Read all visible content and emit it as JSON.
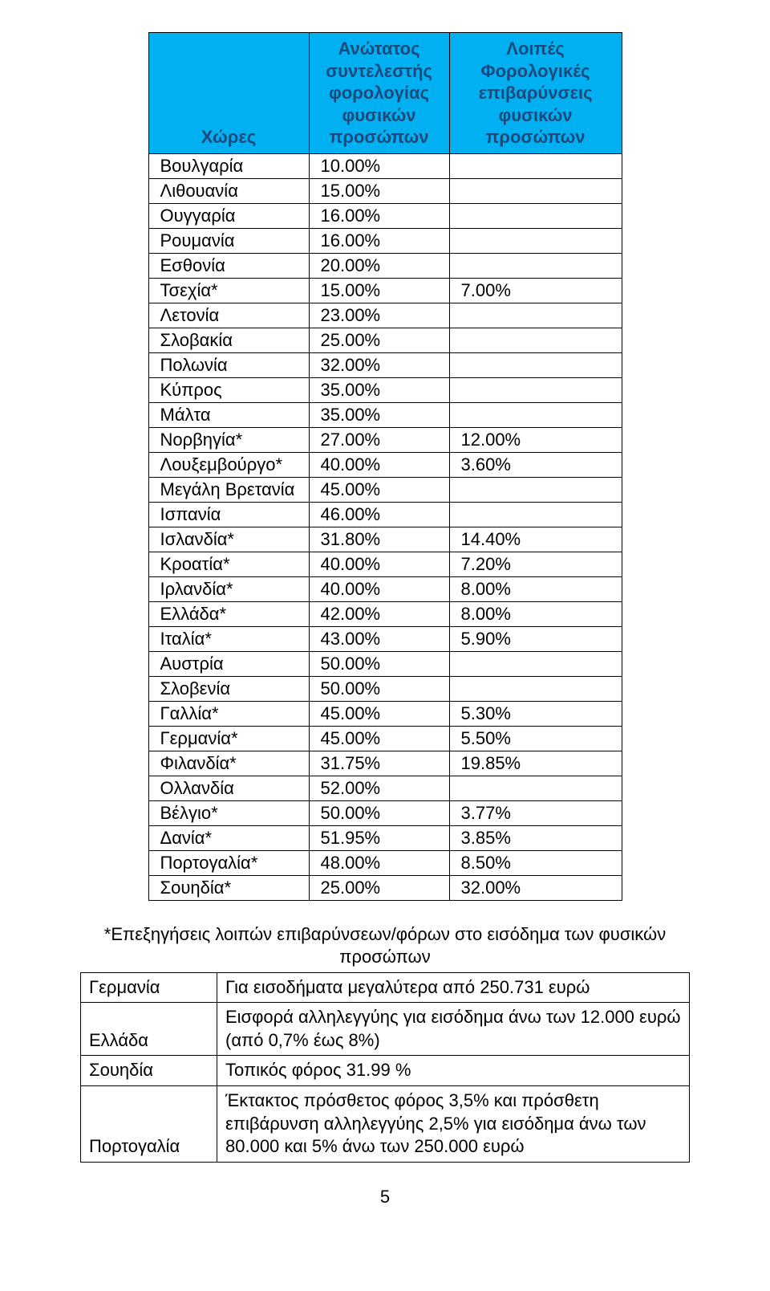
{
  "table": {
    "header": {
      "countries": "Χώρες",
      "top_rate": "Ανώτατος συντελεστής φορολογίας φυσικών προσώπων",
      "other_burdens": "Λοιπές Φορολογικές επιβαρύνσεις φυσικών προσώπων"
    },
    "colors": {
      "header_bg": "#00b0f0",
      "header_text": "#1f497d",
      "border": "#000000",
      "page_bg": "#ffffff",
      "body_text": "#000000"
    },
    "rows": [
      {
        "country": "Βουλγαρία",
        "rate": "10.00%",
        "other": ""
      },
      {
        "country": "Λιθουανία",
        "rate": "15.00%",
        "other": ""
      },
      {
        "country": "Ουγγαρία",
        "rate": "16.00%",
        "other": ""
      },
      {
        "country": "Ρουμανία",
        "rate": "16.00%",
        "other": ""
      },
      {
        "country": "Εσθονία",
        "rate": "20.00%",
        "other": ""
      },
      {
        "country": "Τσεχία*",
        "rate": "15.00%",
        "other": "7.00%"
      },
      {
        "country": "Λετονία",
        "rate": "23.00%",
        "other": ""
      },
      {
        "country": "Σλοβακία",
        "rate": "25.00%",
        "other": ""
      },
      {
        "country": "Πολωνία",
        "rate": "32.00%",
        "other": ""
      },
      {
        "country": "Κύπρος",
        "rate": "35.00%",
        "other": ""
      },
      {
        "country": "Μάλτα",
        "rate": "35.00%",
        "other": ""
      },
      {
        "country": "Νορβηγία*",
        "rate": "27.00%",
        "other": "12.00%"
      },
      {
        "country": "Λουξεμβούργο*",
        "rate": "40.00%",
        "other": "3.60%"
      },
      {
        "country": "Μεγάλη Βρετανία",
        "rate": "45.00%",
        "other": ""
      },
      {
        "country": "Ισπανία",
        "rate": "46.00%",
        "other": ""
      },
      {
        "country": "Ισλανδία*",
        "rate": "31.80%",
        "other": "14.40%"
      },
      {
        "country": "Κροατία*",
        "rate": "40.00%",
        "other": "7.20%"
      },
      {
        "country": "Ιρλανδία*",
        "rate": "40.00%",
        "other": "8.00%"
      },
      {
        "country": "Ελλάδα*",
        "rate": "42.00%",
        "other": "8.00%"
      },
      {
        "country": "Ιταλία*",
        "rate": "43.00%",
        "other": "5.90%"
      },
      {
        "country": "Αυστρία",
        "rate": "50.00%",
        "other": ""
      },
      {
        "country": "Σλοβενία",
        "rate": "50.00%",
        "other": ""
      },
      {
        "country": "Γαλλία*",
        "rate": "45.00%",
        "other": "5.30%"
      },
      {
        "country": "Γερμανία*",
        "rate": "45.00%",
        "other": "5.50%"
      },
      {
        "country": "Φιλανδία*",
        "rate": "31.75%",
        "other": "19.85%"
      },
      {
        "country": "Ολλανδία",
        "rate": "52.00%",
        "other": ""
      },
      {
        "country": "Βέλγιο*",
        "rate": "50.00%",
        "other": "3.77%"
      },
      {
        "country": "Δανία*",
        "rate": "51.95%",
        "other": "3.85%"
      },
      {
        "country": "Πορτογαλία*",
        "rate": "48.00%",
        "other": "8.50%"
      },
      {
        "country": "Σουηδία*",
        "rate": "25.00%",
        "other": "32.00%"
      }
    ]
  },
  "notes": {
    "title": "*Επεξηγήσεις λοιπών επιβαρύνσεων/φόρων στο εισόδημα των φυσικών προσώπων",
    "rows": [
      {
        "country": "Γερμανία",
        "text": "Για εισοδήματα μεγαλύτερα από 250.731 ευρώ"
      },
      {
        "country": "Ελλάδα",
        "text": "Εισφορά αλληλεγγύης για εισόδημα άνω των 12.000 ευρώ (από 0,7% έως 8%)"
      },
      {
        "country": "Σουηδία",
        "text": "Τοπικός φόρος  31.99 %"
      },
      {
        "country": "Πορτογαλία",
        "text": " Έκτακτος πρόσθετος φόρος  3,5% και πρόσθετη επιβάρυνση αλληλεγγύης 2,5% για εισόδημα άνω των 80.000 και 5% άνω των 250.000 ευρώ"
      }
    ]
  },
  "page_number": "5"
}
